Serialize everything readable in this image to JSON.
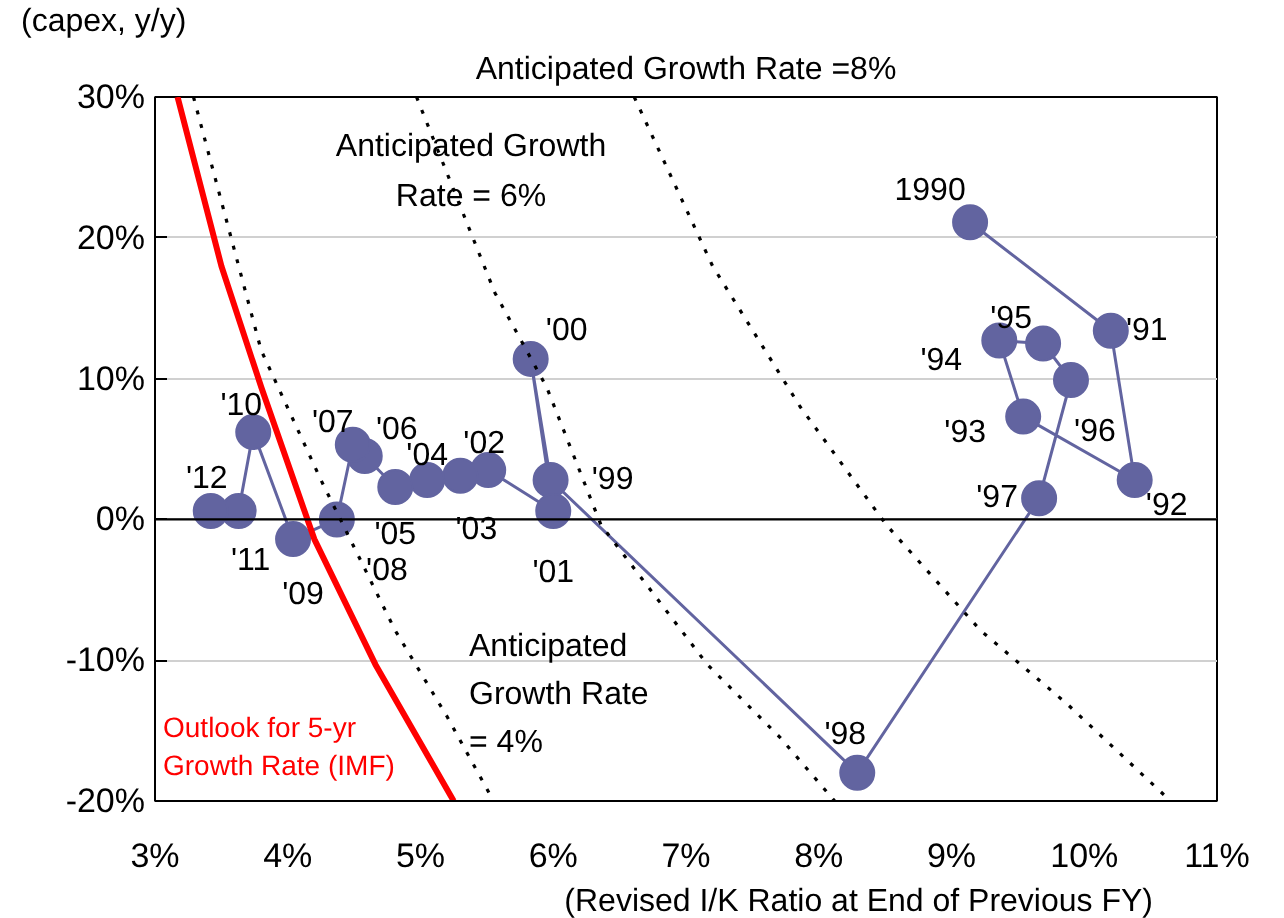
{
  "chart_data": {
    "type": "line",
    "xlabel": "(Revised I/K Ratio at End of Previous FY)",
    "ylabel": "(capex, y/y)",
    "xlim": [
      3,
      11
    ],
    "ylim": [
      -20,
      30
    ],
    "xticks": [
      {
        "value": 3,
        "label": "3%"
      },
      {
        "value": 4,
        "label": "4%"
      },
      {
        "value": 5,
        "label": "5%"
      },
      {
        "value": 6,
        "label": "6%"
      },
      {
        "value": 7,
        "label": "7%"
      },
      {
        "value": 8,
        "label": "8%"
      },
      {
        "value": 9,
        "label": "9%"
      },
      {
        "value": 10,
        "label": "10%"
      },
      {
        "value": 11,
        "label": "11%"
      }
    ],
    "yticks": [
      {
        "value": -20,
        "label": "-20%"
      },
      {
        "value": -10,
        "label": "-10%"
      },
      {
        "value": 0,
        "label": "0%"
      },
      {
        "value": 10,
        "label": "10%"
      },
      {
        "value": 20,
        "label": "20%"
      },
      {
        "value": 30,
        "label": "30%"
      }
    ],
    "grid": "y",
    "ref_lines": [
      {
        "axis": "y",
        "value": 0,
        "color": "#000000",
        "line_style": "solid"
      }
    ],
    "series": [
      {
        "color": "#6264a0",
        "marker": "circle",
        "line_style": "solid",
        "x": [
          9.14,
          10.2,
          10.38,
          9.54,
          9.36,
          9.69,
          9.9,
          9.66,
          8.29,
          5.98,
          5.83,
          6.0,
          5.51,
          5.3,
          5.05,
          4.81,
          4.58,
          4.49,
          4.37,
          4.04,
          3.74,
          3.63,
          3.42
        ],
        "values": [
          21.1,
          13.4,
          2.8,
          7.3,
          12.7,
          12.5,
          9.9,
          1.5,
          -18.0,
          2.8,
          11.4,
          0.6,
          3.5,
          3.1,
          2.8,
          2.3,
          4.5,
          5.3,
          0.0,
          -1.4,
          6.2,
          0.6,
          0.6
        ]
      },
      {
        "name": "Anticipated Growth Rate = 4%",
        "color": "#000000",
        "marker": "none",
        "line_style": "dotted",
        "x": [
          3.29,
          3.8,
          4.25,
          4.81,
          5.2,
          5.55
        ],
        "values": [
          30,
          12,
          2.8,
          -7.9,
          -14,
          -20
        ]
      },
      {
        "name": "Anticipated Growth Rate = 6%",
        "color": "#000000",
        "marker": "none",
        "line_style": "dotted",
        "x": [
          4.97,
          5.56,
          5.95,
          6.36,
          7.16,
          7.71,
          8.12
        ],
        "values": [
          30,
          16.1,
          9.4,
          -0.4,
          -10.3,
          -15.5,
          -20
        ]
      },
      {
        "name": "Anticipated Growth Rate =8%",
        "color": "#000000",
        "marker": "none",
        "line_style": "dotted",
        "x": [
          6.61,
          7.2,
          7.86,
          8.51,
          9.22,
          9.87,
          10.65
        ],
        "values": [
          30,
          18,
          8.0,
          -0.4,
          -7.9,
          -13.1,
          -20
        ]
      },
      {
        "name": "Outlook for 5-yr Growth Rate (IMF)",
        "color": "#ff0000",
        "marker": "none",
        "line_style": "solid",
        "x": [
          3.17,
          3.5,
          3.8,
          4.2,
          4.66,
          5.25
        ],
        "values": [
          30,
          18,
          9.4,
          -1.4,
          -10.3,
          -20
        ]
      }
    ],
    "annotations": [
      {
        "text": "1990",
        "x": 9.14,
        "y": 21.1
      },
      {
        "text": "'91",
        "x": 10.2,
        "y": 13.4
      },
      {
        "text": "'92",
        "x": 10.38,
        "y": 2.8
      },
      {
        "text": "'93",
        "x": 9.54,
        "y": 7.3
      },
      {
        "text": "'94",
        "x": 9.36,
        "y": 12.7
      },
      {
        "text": "'95",
        "x": 9.69,
        "y": 12.5
      },
      {
        "text": "'96",
        "x": 9.9,
        "y": 9.9
      },
      {
        "text": "'97",
        "x": 9.66,
        "y": 1.5
      },
      {
        "text": "'98",
        "x": 8.29,
        "y": -18.0
      },
      {
        "text": "'99",
        "x": 5.98,
        "y": 2.8
      },
      {
        "text": "'00",
        "x": 5.83,
        "y": 11.4
      },
      {
        "text": "'01",
        "x": 6.0,
        "y": 0.6
      },
      {
        "text": "'02",
        "x": 5.51,
        "y": 3.5
      },
      {
        "text": "'03",
        "x": 5.3,
        "y": 3.1
      },
      {
        "text": "'04",
        "x": 5.05,
        "y": 2.8
      },
      {
        "text": "'05",
        "x": 4.81,
        "y": 2.3
      },
      {
        "text": "'06",
        "x": 4.58,
        "y": 4.5
      },
      {
        "text": "'07",
        "x": 4.49,
        "y": 5.3
      },
      {
        "text": "'08",
        "x": 4.37,
        "y": 0.0
      },
      {
        "text": "'09",
        "x": 4.04,
        "y": -1.4
      },
      {
        "text": "'10",
        "x": 3.74,
        "y": 6.2
      },
      {
        "text": "'11",
        "x": 3.63,
        "y": 0.6
      },
      {
        "text": "'12",
        "x": 3.42,
        "y": 0.6
      }
    ]
  }
}
